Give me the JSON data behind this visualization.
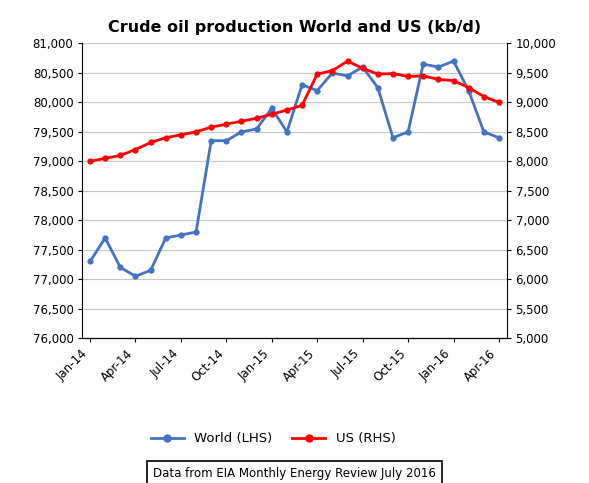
{
  "title": "Crude oil production World and US (kb/d)",
  "x_labels": [
    "Jan-14",
    "Apr-14",
    "Jul-14",
    "Oct-14",
    "Jan-15",
    "Apr-15",
    "Jul-15",
    "Oct-15",
    "Jan-16",
    "Apr-16"
  ],
  "world_data": [
    77300,
    77700,
    77200,
    77050,
    77150,
    77700,
    77750,
    77800,
    79350,
    79350,
    79500,
    79550,
    79900,
    79500,
    80300,
    80200,
    80500,
    80450,
    80600,
    80250,
    79400,
    79500,
    80650,
    80600,
    80700,
    80200,
    79500,
    79400
  ],
  "us_data": [
    8000,
    8050,
    8100,
    8200,
    8320,
    8400,
    8450,
    8500,
    8580,
    8630,
    8680,
    8730,
    8800,
    8870,
    8950,
    9480,
    9540,
    9700,
    9580,
    9480,
    9490,
    9440,
    9450,
    9390,
    9370,
    9250,
    9100,
    9000
  ],
  "world_color": "#4472C4",
  "us_color": "#FF0000",
  "lhs_ylim": [
    76000,
    81000
  ],
  "rhs_ylim": [
    5000,
    10000
  ],
  "lhs_yticks": [
    76000,
    76500,
    77000,
    77500,
    78000,
    78500,
    79000,
    79500,
    80000,
    80500,
    81000
  ],
  "rhs_yticks": [
    5000,
    5500,
    6000,
    6500,
    7000,
    7500,
    8000,
    8500,
    9000,
    9500,
    10000
  ],
  "annotation": "Data from EIA Monthly Energy Review July 2016",
  "legend_world": "World (LHS)",
  "legend_us": "US (RHS)",
  "background_color": "#FFFFFF",
  "grid_color": "#C8C8C8"
}
